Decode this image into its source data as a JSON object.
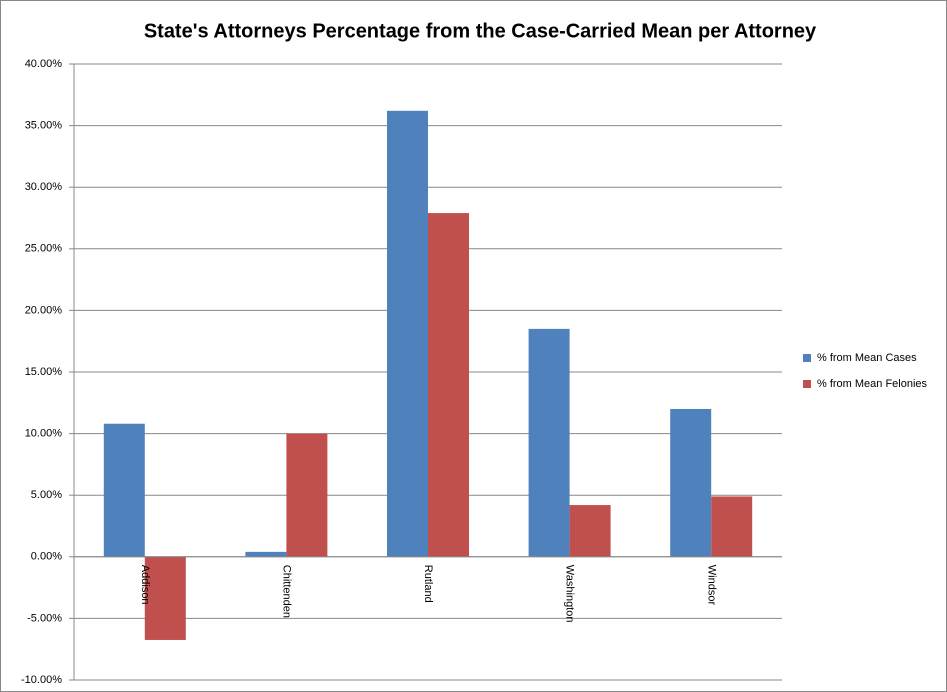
{
  "chart_data": {
    "type": "bar",
    "title": "State's Attorneys Percentage from the Case-Carried Mean per Attorney",
    "categories": [
      "Addison",
      "Chittenden",
      "Rutland",
      "Washington",
      "Windsor"
    ],
    "series": [
      {
        "name": "% from Mean Cases",
        "color": "#4f81bd",
        "values": [
          10.8,
          0.4,
          36.2,
          18.5,
          12.0
        ]
      },
      {
        "name": "% from Mean Felonies",
        "color": "#c0504d",
        "values": [
          -6.75,
          10.0,
          27.9,
          4.2,
          4.9
        ]
      }
    ],
    "ylim": [
      -10,
      40
    ],
    "yticks": [
      {
        "value": -10,
        "label": "-10.00%"
      },
      {
        "value": -5,
        "label": "-5.00%"
      },
      {
        "value": 0,
        "label": "0.00%"
      },
      {
        "value": 5,
        "label": "5.00%"
      },
      {
        "value": 10,
        "label": "10.00%"
      },
      {
        "value": 15,
        "label": "15.00%"
      },
      {
        "value": 20,
        "label": "20.00%"
      },
      {
        "value": 25,
        "label": "25.00%"
      },
      {
        "value": 30,
        "label": "30.00%"
      },
      {
        "value": 35,
        "label": "35.00%"
      },
      {
        "value": 40,
        "label": "40.00%"
      }
    ],
    "grid": true,
    "legend": "right"
  }
}
